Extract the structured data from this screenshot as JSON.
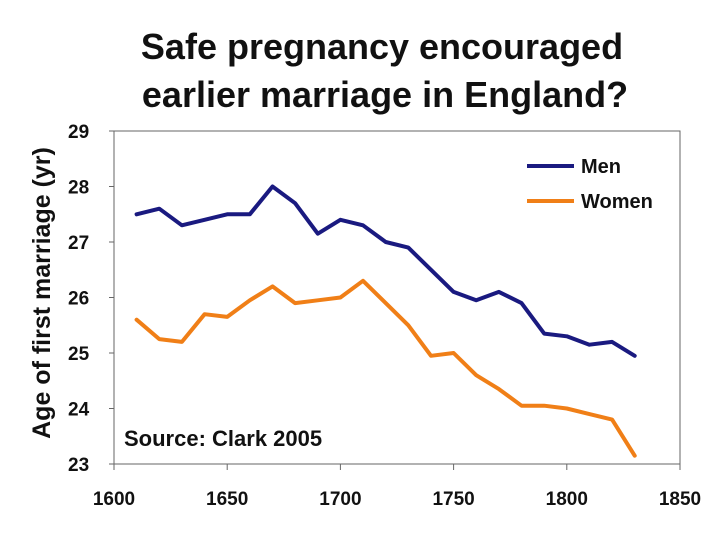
{
  "chart_data": {
    "type": "line",
    "title_lines": [
      "Safe pregnancy encouraged",
      "earlier marriage in England?"
    ],
    "ylabel": "Age of first marriage (yr)",
    "xlabel": "",
    "xlim": [
      1600,
      1850
    ],
    "ylim": [
      23,
      29
    ],
    "xticks": [
      1600,
      1650,
      1700,
      1750,
      1800,
      1850
    ],
    "yticks": [
      23,
      24,
      25,
      26,
      27,
      28,
      29
    ],
    "grid": false,
    "legend_position": "top-right",
    "annotation": "Source: Clark 2005",
    "series": [
      {
        "name": "Men",
        "color": "#1a1a80",
        "x": [
          1610,
          1620,
          1630,
          1640,
          1650,
          1660,
          1670,
          1680,
          1690,
          1700,
          1710,
          1720,
          1730,
          1740,
          1750,
          1760,
          1770,
          1780,
          1790,
          1800,
          1810,
          1820,
          1830
        ],
        "values": [
          27.5,
          27.6,
          27.3,
          27.4,
          27.5,
          27.5,
          28.0,
          27.7,
          27.15,
          27.4,
          27.3,
          27.0,
          26.9,
          26.5,
          26.1,
          25.95,
          26.1,
          25.9,
          25.35,
          25.3,
          25.15,
          25.2,
          24.95
        ]
      },
      {
        "name": "Women",
        "color": "#f07f17",
        "x": [
          1610,
          1620,
          1630,
          1640,
          1650,
          1660,
          1670,
          1680,
          1690,
          1700,
          1710,
          1720,
          1730,
          1740,
          1750,
          1760,
          1770,
          1780,
          1790,
          1800,
          1810,
          1820,
          1830
        ],
        "values": [
          25.6,
          25.25,
          25.2,
          25.7,
          25.65,
          25.95,
          26.2,
          25.9,
          25.95,
          26.0,
          26.3,
          25.9,
          25.5,
          24.95,
          25.0,
          24.6,
          24.35,
          24.05,
          24.05,
          24.0,
          23.9,
          23.8,
          23.15
        ]
      }
    ]
  }
}
